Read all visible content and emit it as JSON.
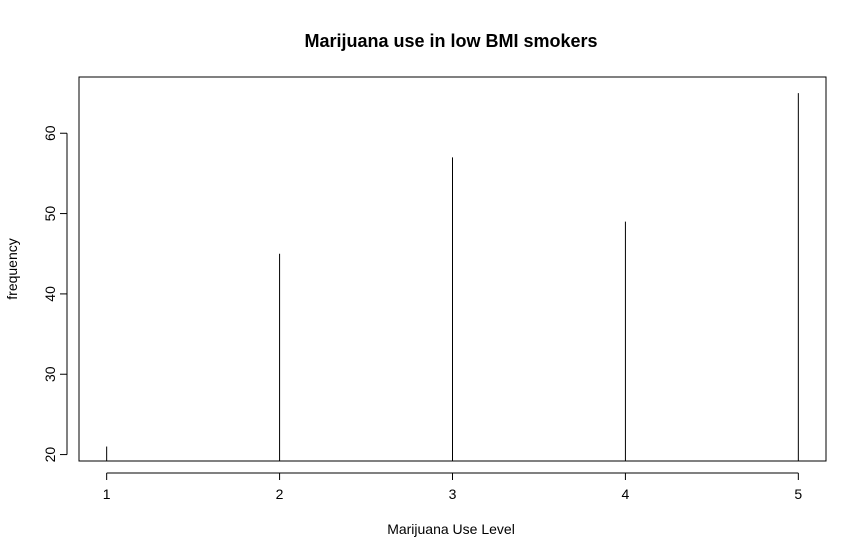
{
  "chart_data": {
    "type": "bar",
    "title": "Marijuana use in low BMI smokers",
    "xlabel": "Marijuana Use Level",
    "ylabel": "frequency",
    "x": [
      1,
      2,
      3,
      4,
      5
    ],
    "values": [
      21,
      45,
      57,
      49,
      65
    ],
    "xlim": [
      0.84,
      5.16
    ],
    "ylim": [
      19.2,
      67
    ],
    "xticks": [
      1,
      2,
      3,
      4,
      5
    ],
    "yticks": [
      20,
      30,
      40,
      50,
      60
    ],
    "grid": false,
    "colors": {
      "bar": "#000000",
      "axis": "#000000",
      "background": "#ffffff"
    }
  }
}
